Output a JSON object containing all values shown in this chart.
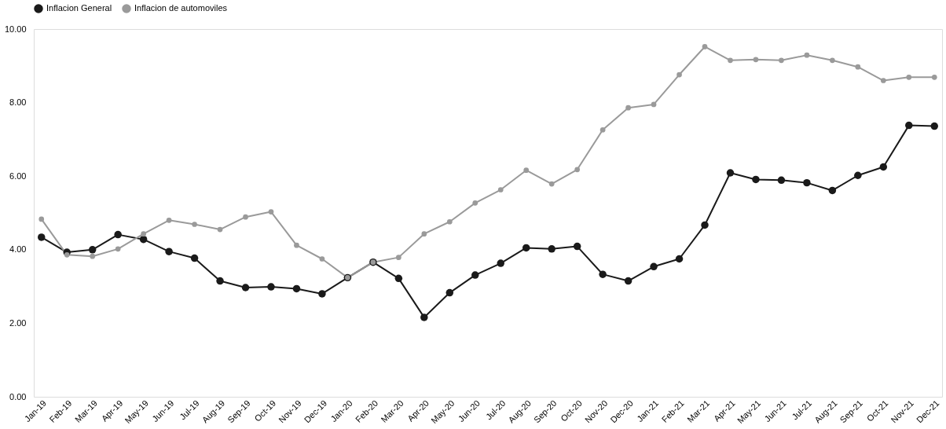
{
  "chart_data": {
    "type": "line",
    "categories": [
      "Jan-19",
      "Feb-19",
      "Mar-19",
      "Apr-19",
      "May-19",
      "Jun-19",
      "Jul-19",
      "Aug-19",
      "Sep-19",
      "Oct-19",
      "Nov-19",
      "Dec-19",
      "Jan-20",
      "Feb-20",
      "Mar-20",
      "Apr-20",
      "May-20",
      "Jun-20",
      "Jul-20",
      "Aug-20",
      "Sep-20",
      "Oct-20",
      "Nov-20",
      "Dec-20",
      "Jan-21",
      "Feb-21",
      "Mar-21",
      "Apr-21",
      "May-21",
      "Jun-21",
      "Jul-21",
      "Aug-21",
      "Sep-21",
      "Oct-21",
      "Nov-21",
      "Dec-21"
    ],
    "series": [
      {
        "name": "Inflacion General",
        "color": "#1a1a1a",
        "values": [
          4.34,
          3.93,
          4.0,
          4.41,
          4.28,
          3.95,
          3.77,
          3.15,
          2.97,
          2.99,
          2.94,
          2.8,
          3.24,
          3.66,
          3.22,
          2.16,
          2.83,
          3.31,
          3.63,
          4.05,
          4.02,
          4.09,
          3.33,
          3.15,
          3.54,
          3.75,
          4.67,
          6.09,
          5.91,
          5.89,
          5.82,
          5.61,
          6.02,
          6.25,
          7.38,
          7.36
        ]
      },
      {
        "name": "Inflacion de automoviles",
        "color": "#9a9a9a",
        "values": [
          4.83,
          3.86,
          3.82,
          4.02,
          4.43,
          4.8,
          4.69,
          4.55,
          4.89,
          5.03,
          4.12,
          3.75,
          3.24,
          3.66,
          3.79,
          4.43,
          4.76,
          5.27,
          5.63,
          6.16,
          5.79,
          6.18,
          7.26,
          7.86,
          7.95,
          8.76,
          9.52,
          9.15,
          9.17,
          9.15,
          9.29,
          9.15,
          8.97,
          8.6,
          8.69,
          8.69
        ]
      }
    ],
    "ylim": [
      0,
      10
    ],
    "yticks": [
      {
        "value": 0,
        "label": "0.00"
      },
      {
        "value": 2,
        "label": "2.00"
      },
      {
        "value": 4,
        "label": "4.00"
      },
      {
        "value": 6,
        "label": "6.00"
      },
      {
        "value": 8,
        "label": "8.00"
      },
      {
        "value": 10,
        "label": "10.00"
      }
    ],
    "legend": "top",
    "marker": "circle",
    "line_style": "solid",
    "grid": false
  }
}
